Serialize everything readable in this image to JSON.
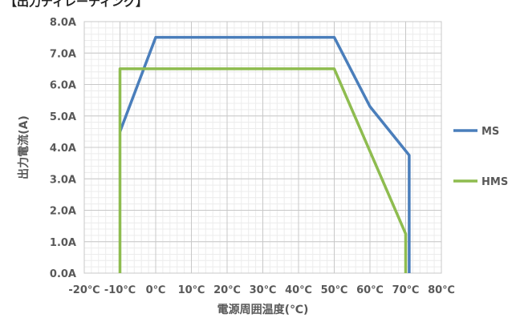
{
  "top_label": "【出力ディレーティング】",
  "chart_data": {
    "type": "line",
    "xlabel": "電源周囲温度(℃)",
    "ylabel": "出力電流(A)",
    "x_ticks": [
      -20,
      -10,
      0,
      10,
      20,
      30,
      40,
      50,
      60,
      70,
      80
    ],
    "x_tick_labels": [
      "-20℃",
      "-10℃",
      "0℃",
      "10℃",
      "20℃",
      "30℃",
      "40℃",
      "50℃",
      "60℃",
      "70℃",
      "80℃"
    ],
    "y_ticks": [
      0,
      1,
      2,
      3,
      4,
      5,
      6,
      7,
      8
    ],
    "y_tick_labels": [
      "0.0A",
      "1.0A",
      "2.0A",
      "3.0A",
      "4.0A",
      "5.0A",
      "6.0A",
      "7.0A",
      "8.0A"
    ],
    "xlim": [
      -20,
      80
    ],
    "ylim": [
      0,
      8
    ],
    "grid": true,
    "minor_grid": true,
    "legend_position": "right",
    "series": [
      {
        "name": "MS",
        "color": "#4a7ebb",
        "points": [
          [
            -10,
            4.5
          ],
          [
            0,
            7.5
          ],
          [
            50,
            7.5
          ],
          [
            60,
            5.3
          ],
          [
            71,
            3.75
          ],
          [
            71,
            0
          ]
        ]
      },
      {
        "name": "HMS",
        "color": "#8ebc4f",
        "points": [
          [
            -10,
            0
          ],
          [
            -10,
            6.5
          ],
          [
            50,
            6.5
          ],
          [
            70,
            1.25
          ],
          [
            70,
            0
          ]
        ]
      }
    ]
  }
}
